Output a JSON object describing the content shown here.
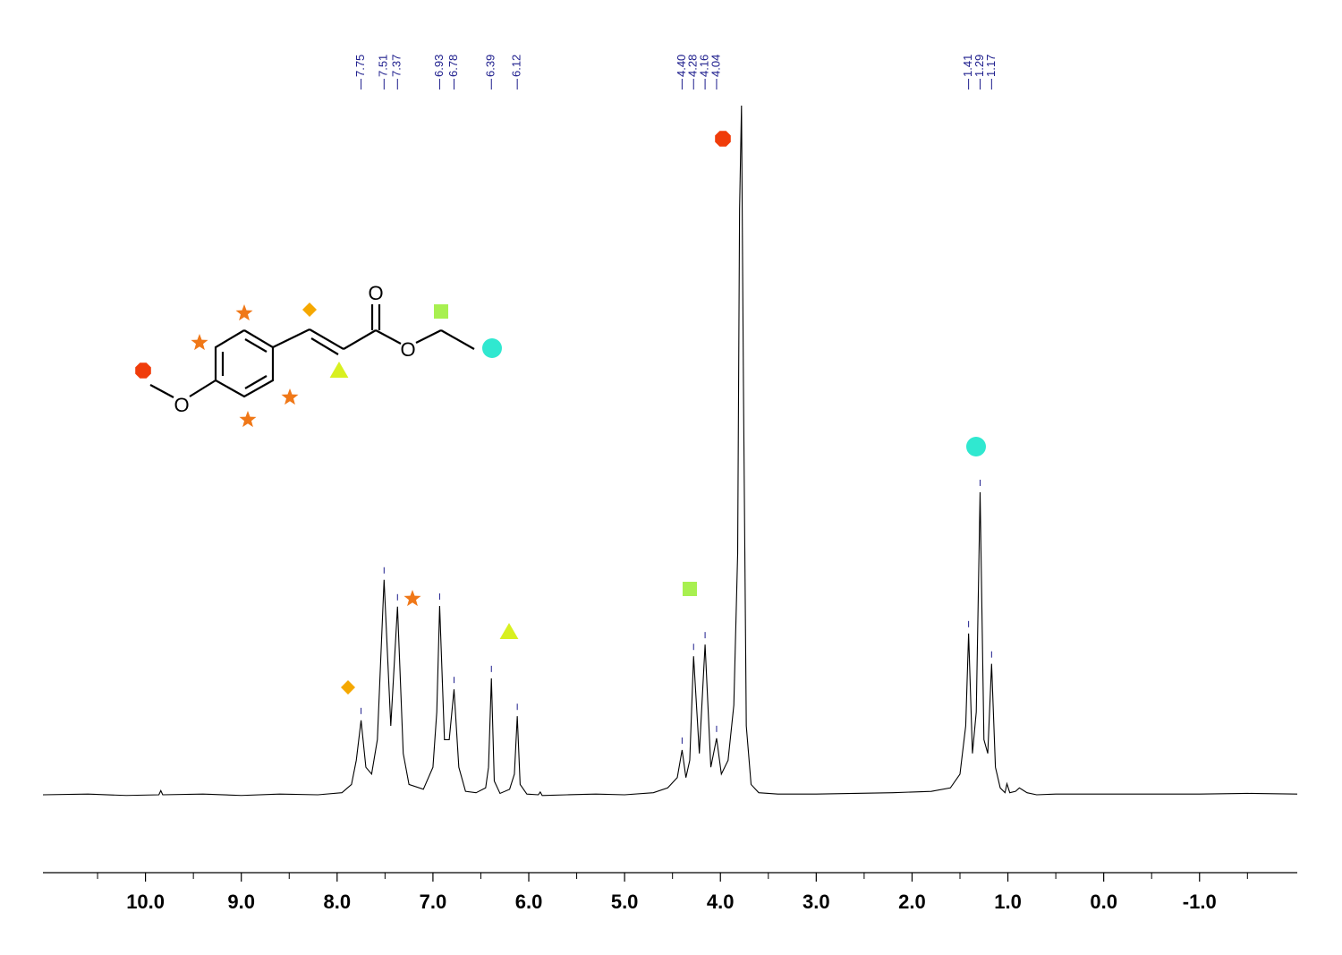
{
  "chart_data": {
    "type": "line",
    "xlim": [
      11.07,
      -2.02
    ],
    "ylim": [
      -11.3,
      100
    ],
    "xticks": [
      {
        "value": 10,
        "label": "10.0"
      },
      {
        "value": 9,
        "label": "9.0"
      },
      {
        "value": 8,
        "label": "8.0"
      },
      {
        "value": 7,
        "label": "7.0"
      },
      {
        "value": 6,
        "label": "6.0"
      },
      {
        "value": 5,
        "label": "5.0"
      },
      {
        "value": 4,
        "label": "4.0"
      },
      {
        "value": 3,
        "label": "3.0"
      },
      {
        "value": 2,
        "label": "2.0"
      },
      {
        "value": 1,
        "label": "1.0"
      },
      {
        "value": 0,
        "label": "0.0"
      },
      {
        "value": -1,
        "label": "-1.0"
      }
    ],
    "xticks_minor": [
      10.5,
      9.5,
      8.5,
      7.5,
      6.5,
      5.5,
      4.5,
      3.5,
      2.5,
      1.5,
      0.5,
      -0.5,
      -1.5
    ],
    "color": "#000000",
    "peak_label_color": "#1c1c8c",
    "peak_labels": [
      7.75,
      7.51,
      7.37,
      6.93,
      6.78,
      6.39,
      6.12,
      {
        "value": 4.4,
        "label": "4.40"
      },
      4.28,
      4.16,
      4.04,
      1.41,
      1.29,
      1.17
    ],
    "x": [
      11.07,
      10.6,
      10.2,
      9.86,
      9.84,
      9.82,
      9.4,
      9.0,
      8.6,
      8.2,
      7.95,
      7.85,
      7.8,
      7.75,
      7.7,
      7.64,
      7.58,
      7.51,
      7.44,
      7.37,
      7.31,
      7.25,
      7.1,
      7.0,
      6.96,
      6.93,
      6.88,
      6.83,
      6.78,
      6.73,
      6.66,
      6.55,
      6.45,
      6.42,
      6.39,
      6.36,
      6.3,
      6.2,
      6.15,
      6.12,
      6.09,
      6.02,
      5.9,
      5.88,
      5.86,
      5.6,
      5.3,
      5.0,
      4.7,
      4.55,
      4.45,
      4.4,
      4.36,
      4.32,
      4.28,
      4.22,
      4.16,
      4.1,
      4.04,
      3.99,
      3.92,
      3.86,
      3.82,
      3.8,
      3.78,
      3.76,
      3.73,
      3.68,
      3.6,
      3.4,
      3.0,
      2.6,
      2.2,
      1.8,
      1.6,
      1.5,
      1.44,
      1.41,
      1.37,
      1.33,
      1.29,
      1.25,
      1.21,
      1.17,
      1.13,
      1.08,
      1.03,
      1.01,
      0.98,
      0.92,
      0.88,
      0.8,
      0.7,
      0.5,
      0.0,
      -0.5,
      -1.0,
      -1.5,
      -2.02
    ],
    "values": [
      0,
      0.1,
      -0.1,
      0,
      0.6,
      0,
      0.1,
      -0.1,
      0.1,
      0,
      0.3,
      1.5,
      5,
      10.8,
      4,
      3,
      8,
      31.2,
      10,
      27.3,
      6,
      1.5,
      0.8,
      4,
      12,
      27.4,
      8,
      8,
      15.3,
      4,
      0.5,
      0.3,
      1,
      4,
      16.9,
      2,
      0.2,
      0.8,
      3,
      11.4,
      1.5,
      0.1,
      0,
      0.4,
      -0.1,
      0,
      0.1,
      0,
      0.3,
      1,
      2.5,
      6.5,
      2.5,
      5,
      20.1,
      6,
      21.8,
      4,
      8.2,
      3,
      5,
      13,
      35,
      85,
      100,
      60,
      10,
      1.5,
      0.3,
      0.1,
      0.1,
      0.2,
      0.3,
      0.5,
      1,
      3,
      10,
      23.4,
      6,
      12,
      43.9,
      8,
      6,
      19,
      4,
      1,
      0.3,
      1.6,
      0.3,
      0.5,
      1,
      0.3,
      0,
      0.1,
      0.1,
      0.1,
      0.1,
      0.2,
      0.1
    ]
  },
  "molecule": {
    "atoms": [
      "O",
      "O",
      "O"
    ]
  }
}
